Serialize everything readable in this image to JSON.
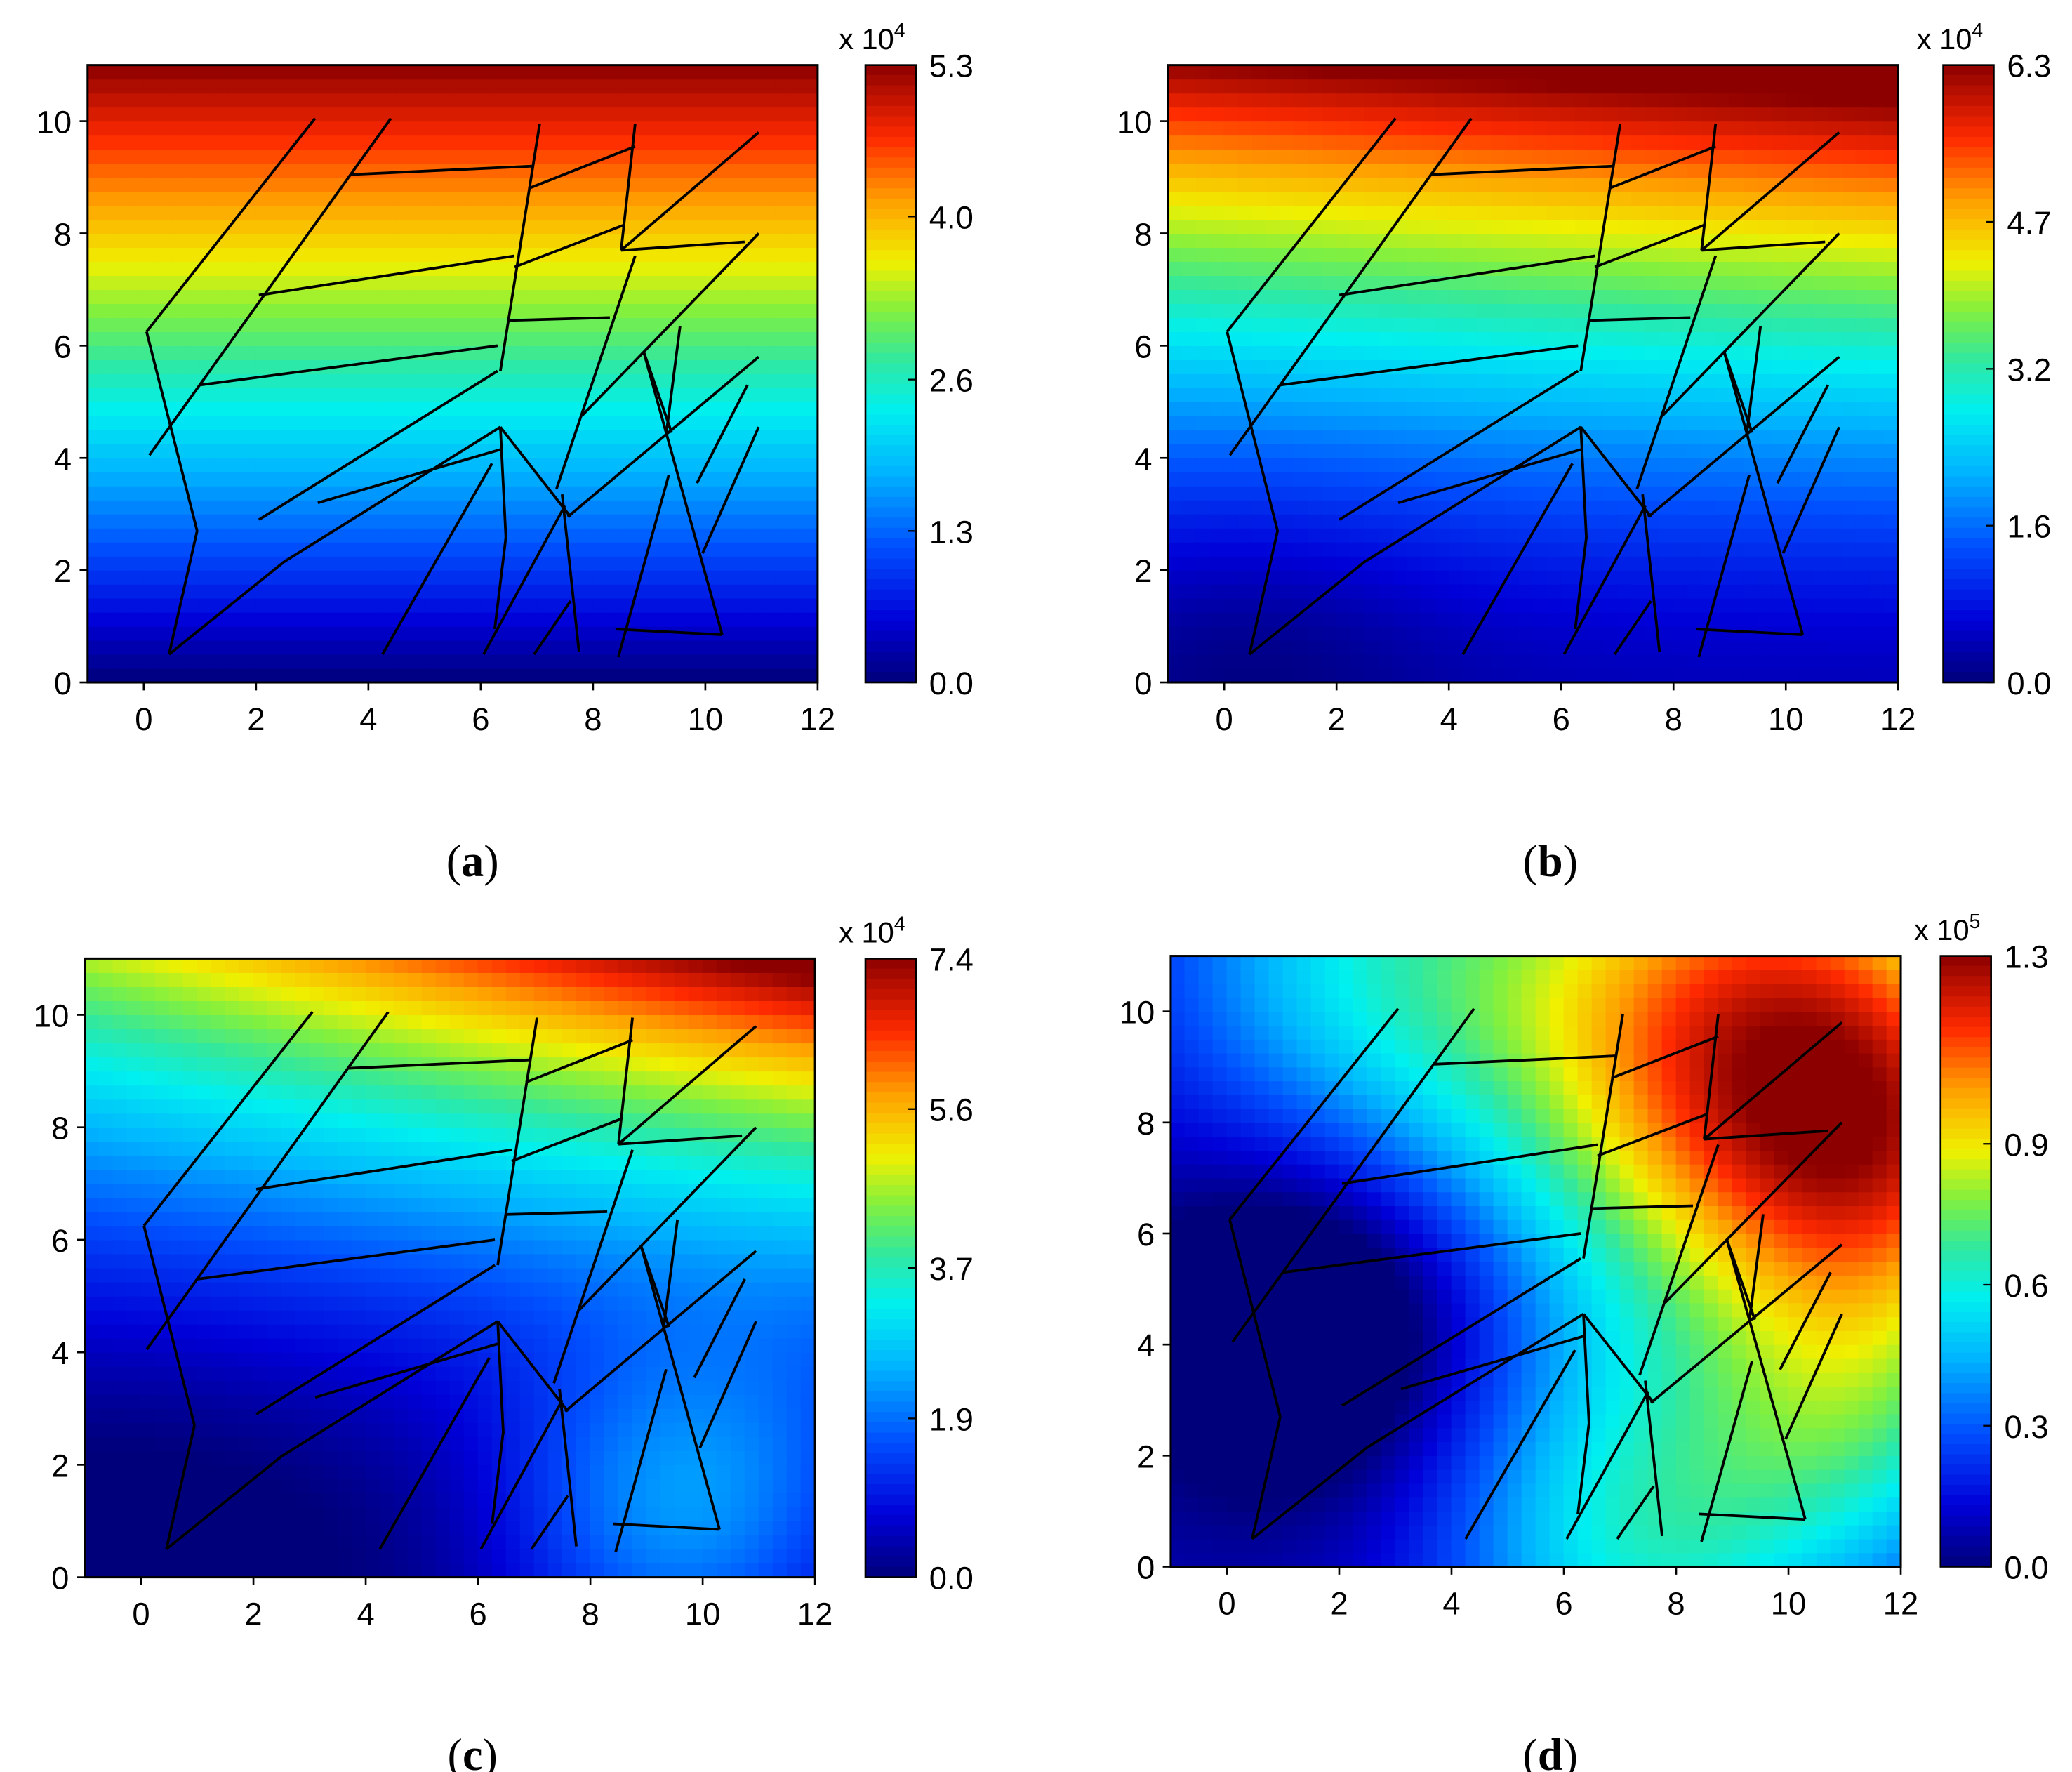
{
  "chart_data": [
    {
      "type": "heatmap",
      "panel_label": "a",
      "xticks": [
        "0",
        "2",
        "4",
        "6",
        "8",
        "10",
        "12"
      ],
      "yticks": [
        "0",
        "2",
        "4",
        "6",
        "8",
        "10"
      ],
      "xlim": [
        -1,
        12
      ],
      "ylim": [
        0,
        11
      ],
      "colorbar": {
        "multiplier": "x 10",
        "exponent": "4",
        "ticks": [
          "5.3",
          "4.0",
          "2.6",
          "1.3",
          "0.0"
        ],
        "values": [
          5.3,
          4.0,
          2.6,
          1.3,
          0.0
        ]
      },
      "field": {
        "min": 0.0,
        "max": 5.3,
        "pattern": "linear-vertical"
      }
    },
    {
      "type": "heatmap",
      "panel_label": "b",
      "xticks": [
        "0",
        "2",
        "4",
        "6",
        "8",
        "10",
        "12"
      ],
      "yticks": [
        "0",
        "2",
        "4",
        "6",
        "8",
        "10"
      ],
      "xlim": [
        -1,
        12
      ],
      "ylim": [
        0,
        11
      ],
      "colorbar": {
        "multiplier": "x 10",
        "exponent": "4",
        "ticks": [
          "6.3",
          "4.7",
          "3.2",
          "1.6",
          "0.0"
        ],
        "values": [
          6.3,
          4.7,
          3.2,
          1.6,
          0.0
        ]
      },
      "field": {
        "min": 0.0,
        "max": 6.3,
        "pattern": "top-high-bottom-low"
      }
    },
    {
      "type": "heatmap",
      "panel_label": "c",
      "xticks": [
        "0",
        "2",
        "4",
        "6",
        "8",
        "10",
        "12"
      ],
      "yticks": [
        "0",
        "2",
        "4",
        "6",
        "8",
        "10"
      ],
      "xlim": [
        -1,
        12
      ],
      "ylim": [
        0,
        11
      ],
      "colorbar": {
        "multiplier": "x 10",
        "exponent": "4",
        "ticks": [
          "7.4",
          "5.6",
          "3.7",
          "1.9",
          "0.0"
        ],
        "values": [
          7.4,
          5.6,
          3.7,
          1.9,
          0.0
        ]
      },
      "field": {
        "min": 0.0,
        "max": 7.4,
        "pattern": "top-right-high"
      }
    },
    {
      "type": "heatmap",
      "panel_label": "d",
      "xticks": [
        "0",
        "2",
        "4",
        "6",
        "8",
        "10",
        "12"
      ],
      "yticks": [
        "0",
        "2",
        "4",
        "6",
        "8",
        "10"
      ],
      "xlim": [
        -1,
        12
      ],
      "ylim": [
        0,
        11
      ],
      "colorbar": {
        "multiplier": "x 10",
        "exponent": "5",
        "ticks": [
          "1.3",
          "0.9",
          "0.6",
          "0.3",
          "0.0"
        ],
        "values": [
          1.3,
          0.9,
          0.6,
          0.3,
          0.0
        ]
      },
      "field": {
        "min": 0.0,
        "max": 1.3,
        "pattern": "top-right-high-left-low"
      }
    }
  ],
  "fractures": [
    [
      [
        0.05,
        6.25
      ],
      [
        3.05,
        10.05
      ]
    ],
    [
      [
        0.1,
        4.05
      ],
      [
        4.4,
        10.05
      ]
    ],
    [
      [
        0.05,
        6.25
      ],
      [
        0.95,
        2.7
      ]
    ],
    [
      [
        0.45,
        0.5
      ],
      [
        0.95,
        2.7
      ]
    ],
    [
      [
        0.45,
        0.5
      ],
      [
        2.5,
        2.15
      ]
    ],
    [
      [
        2.5,
        2.15
      ],
      [
        6.35,
        4.55
      ]
    ],
    [
      [
        2.05,
        2.9
      ],
      [
        6.3,
        5.55
      ]
    ],
    [
      [
        3.1,
        3.2
      ],
      [
        6.35,
        4.15
      ]
    ],
    [
      [
        1.0,
        5.3
      ],
      [
        6.3,
        6.0
      ]
    ],
    [
      [
        2.05,
        6.9
      ],
      [
        6.6,
        7.6
      ]
    ],
    [
      [
        3.7,
        9.05
      ],
      [
        6.95,
        9.2
      ]
    ],
    [
      [
        6.35,
        5.55
      ],
      [
        7.05,
        9.95
      ]
    ],
    [
      [
        6.35,
        4.55
      ],
      [
        7.6,
        2.95
      ]
    ],
    [
      [
        6.45,
        2.55
      ],
      [
        6.35,
        4.55
      ]
    ],
    [
      [
        6.5,
        6.45
      ],
      [
        8.3,
        6.5
      ]
    ],
    [
      [
        6.85,
        8.8
      ],
      [
        8.75,
        9.55
      ]
    ],
    [
      [
        6.6,
        7.4
      ],
      [
        8.55,
        8.15
      ]
    ],
    [
      [
        8.4,
        0.95
      ],
      [
        10.3,
        0.85
      ]
    ],
    [
      [
        8.75,
        9.95
      ],
      [
        8.5,
        7.7
      ]
    ],
    [
      [
        8.5,
        7.7
      ],
      [
        10.95,
        9.8
      ]
    ],
    [
      [
        8.5,
        7.7
      ],
      [
        10.7,
        7.85
      ]
    ],
    [
      [
        7.8,
        4.75
      ],
      [
        10.95,
        8.0
      ]
    ],
    [
      [
        7.35,
        3.45
      ],
      [
        8.75,
        7.6
      ]
    ],
    [
      [
        7.45,
        3.35
      ],
      [
        7.75,
        0.55
      ]
    ],
    [
      [
        6.25,
        0.95
      ],
      [
        6.45,
        2.6
      ]
    ],
    [
      [
        6.05,
        0.5
      ],
      [
        7.5,
        3.15
      ]
    ],
    [
      [
        4.25,
        0.5
      ],
      [
        6.2,
        3.9
      ]
    ],
    [
      [
        6.95,
        0.5
      ],
      [
        7.6,
        1.45
      ]
    ],
    [
      [
        8.45,
        0.45
      ],
      [
        9.35,
        3.7
      ]
    ],
    [
      [
        8.9,
        5.9
      ],
      [
        9.4,
        4.45
      ]
    ],
    [
      [
        8.9,
        5.9
      ],
      [
        10.3,
        0.85
      ]
    ],
    [
      [
        9.3,
        4.4
      ],
      [
        9.55,
        6.35
      ]
    ],
    [
      [
        7.55,
        2.95
      ],
      [
        10.95,
        5.8
      ]
    ],
    [
      [
        9.85,
        3.55
      ],
      [
        10.75,
        5.3
      ]
    ],
    [
      [
        9.95,
        2.3
      ],
      [
        10.95,
        4.55
      ]
    ]
  ]
}
